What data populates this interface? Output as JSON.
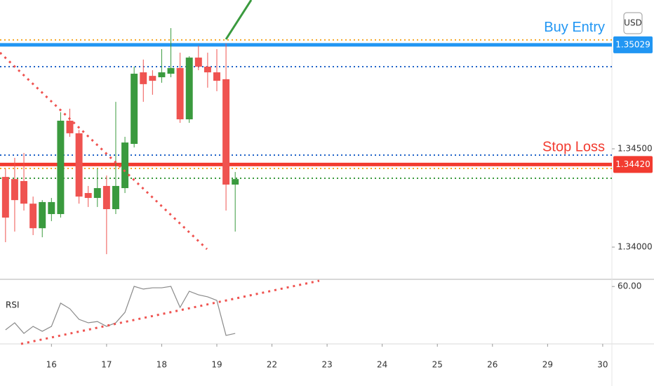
{
  "chart_data": {
    "type": "candlestick",
    "currency": "USD",
    "up_color": "#3a9a3e",
    "down_color": "#ef5350",
    "open": [
      1.34357,
      1.34346,
      1.34336,
      1.34221,
      1.34096,
      1.34168,
      1.34168,
      1.34643,
      1.34579,
      1.34275,
      1.3425,
      1.34311,
      1.34193,
      1.343,
      1.34525,
      1.34889,
      1.34871,
      1.34864,
      1.34882,
      1.34911,
      1.3465,
      1.34964,
      1.34918,
      1.34889,
      1.34854,
      1.34318
    ],
    "high": [
      1.344,
      1.34454,
      1.34479,
      1.34257,
      1.34239,
      1.3425,
      1.34686,
      1.34704,
      1.34596,
      1.34311,
      1.344,
      1.34364,
      1.34739,
      1.34561,
      1.34918,
      1.34954,
      1.349,
      1.35007,
      1.35114,
      1.34989,
      1.34971,
      1.35025,
      1.34989,
      1.35007,
      1.35036,
      1.34382
    ],
    "low": [
      1.34025,
      1.34079,
      1.34186,
      1.34061,
      1.3405,
      1.34132,
      1.3415,
      1.34561,
      1.34221,
      1.34204,
      1.34204,
      1.33964,
      1.34168,
      1.34275,
      1.34507,
      1.34739,
      1.34775,
      1.34836,
      1.34864,
      1.34632,
      1.34632,
      1.349,
      1.34811,
      1.34793,
      1.34186,
      1.34079
    ],
    "close": [
      1.3415,
      1.34239,
      1.34221,
      1.34096,
      1.34229,
      1.34229,
      1.34643,
      1.34579,
      1.34257,
      1.3425,
      1.343,
      1.34193,
      1.34311,
      1.34532,
      1.34882,
      1.34829,
      1.34846,
      1.34889,
      1.34911,
      1.3465,
      1.34964,
      1.34918,
      1.34889,
      1.34846,
      1.34318,
      1.34346
    ],
    "ylim": [
      1.33836,
      1.35257
    ],
    "yticks": [
      {
        "value": 1.345,
        "label": "1.34500"
      },
      {
        "value": 1.34,
        "label": "1.34000"
      }
    ],
    "xlim": [
      -0.6,
      66
    ],
    "xticks": [
      {
        "value": 5,
        "label": "16"
      },
      {
        "value": 11,
        "label": "17"
      },
      {
        "value": 17,
        "label": "18"
      },
      {
        "value": 23,
        "label": "19"
      },
      {
        "value": 29,
        "label": "22"
      },
      {
        "value": 35,
        "label": "23"
      },
      {
        "value": 41,
        "label": "24"
      },
      {
        "value": 47,
        "label": "25"
      },
      {
        "value": 53,
        "label": "26"
      },
      {
        "value": 59,
        "label": "29"
      },
      {
        "value": 65,
        "label": "30"
      }
    ],
    "levels": [
      {
        "value": 1.35029,
        "label": "Buy Entry",
        "color": "#2196f3",
        "style": "solid"
      },
      {
        "value": 1.3442,
        "value_label": "1.34420",
        "label": "Stop Loss",
        "color": "#f23b30",
        "style": "solid"
      },
      {
        "value": 1.35054,
        "color": "#f5a623",
        "style": "dotted"
      },
      {
        "value": 1.34918,
        "color": "#1e62c8",
        "style": "dotted"
      },
      {
        "value": 1.34468,
        "color": "#1e62c8",
        "style": "dotted"
      },
      {
        "value": 1.344,
        "color": "#f5a623",
        "style": "dotted"
      },
      {
        "value": 1.3435,
        "color": "#3a9a3e",
        "style": "dotted"
      }
    ],
    "rsi": {
      "label": "RSI",
      "color": "#8a8a8a",
      "values": [
        29.8,
        34.7,
        27.3,
        32.2,
        28.8,
        32.2,
        48.4,
        44.5,
        37.1,
        34.7,
        35.6,
        32.2,
        34.7,
        42.0,
        60.1,
        58.2,
        59.1,
        59.1,
        60.1,
        45.4,
        56.7,
        54.2,
        52.8,
        50.3,
        25.9,
        27.3
      ],
      "ylim": [
        20,
        65
      ],
      "yticks": [
        {
          "value": 60,
          "label": "60.00"
        }
      ]
    }
  }
}
